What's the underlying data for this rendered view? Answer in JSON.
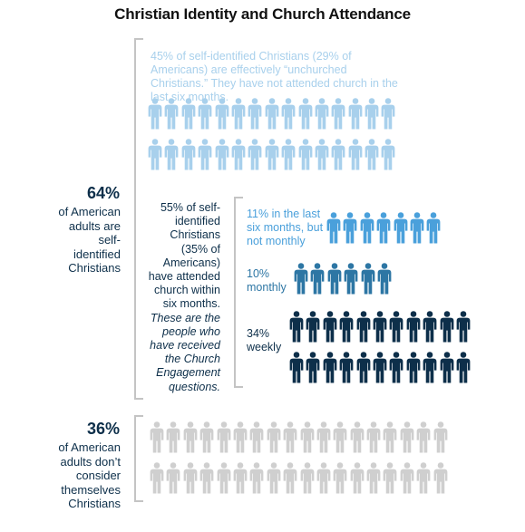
{
  "title": "Christian Identity and Church Attendance",
  "colors": {
    "unchurched": "#a8d0ec",
    "last_six_months": "#4aa0db",
    "monthly": "#2d76a4",
    "weekly": "#0d2f4a",
    "non_christian": "#cfcfcf",
    "bracket": "#c4c4c4",
    "text_dark": "#0d2f4a"
  },
  "unchurched": {
    "text": "45% of self-identified Christians (29% of Americans) are effectively “unchurched Christians.” They have not attended church in the last six months.",
    "icon": "person-icon",
    "rows": 2,
    "per_row": 15
  },
  "christians": {
    "pct": "64%",
    "text": "of American adults are self-identified Christians"
  },
  "attended": {
    "text": "55% of self-identified Christians (35% of Americans) have attended church within six months.",
    "note": "These are the people who have received the Church Engagement questions."
  },
  "groups": [
    {
      "label": "11% in the last six months, but not monthly",
      "rows": 1,
      "per_row": 7,
      "color_key": "last_six_months"
    },
    {
      "label": "10% monthly",
      "rows": 1,
      "per_row": 6,
      "color_key": "monthly"
    },
    {
      "label": "34% weekly",
      "rows": 2,
      "per_row": 11,
      "color_key": "weekly"
    }
  ],
  "non_christians": {
    "pct": "36%",
    "text": "of American adults don’t consider themselves Christians",
    "rows": 2,
    "per_row": 18
  }
}
